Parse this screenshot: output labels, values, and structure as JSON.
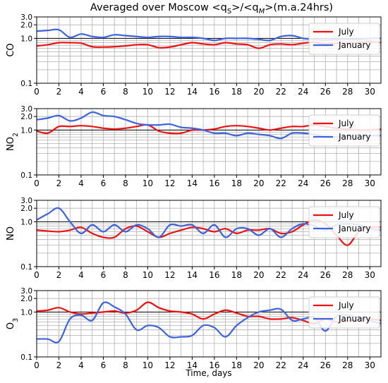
{
  "title_text": "Averaged over Moscow <q",
  "title_sub_s": "S",
  "title_mid": ">/<q",
  "title_sub_m": "M",
  "title_end": ">(m.a.24hrs)",
  "xlabel": "Time, days",
  "colors": {
    "july": "#ee1111",
    "january": "#3d63dd"
  },
  "chart_data": [
    {
      "type": "line",
      "ylabel": "CO",
      "ylabel_sub": "",
      "yscale": "log",
      "ylim": [
        0.1,
        3.0
      ],
      "xlim": [
        0,
        31
      ],
      "yticks": [
        "3.0",
        "2.0",
        "1.0",
        "0.1"
      ],
      "xticks": [
        "0",
        "2",
        "4",
        "6",
        "8",
        "10",
        "12",
        "14",
        "16",
        "18",
        "20",
        "22",
        "24",
        "26",
        "28",
        "30"
      ],
      "legend": "top-right",
      "series": [
        {
          "name": "July",
          "x": [
            0,
            1,
            2,
            3,
            4,
            5,
            6,
            7,
            8,
            9,
            10,
            11,
            12,
            13,
            14,
            15,
            16,
            17,
            18,
            19,
            20,
            21,
            22,
            23,
            24,
            25,
            26,
            27,
            28,
            29,
            30,
            31
          ],
          "values": [
            0.68,
            0.72,
            0.8,
            0.8,
            0.78,
            0.65,
            0.64,
            0.65,
            0.68,
            0.72,
            0.72,
            0.62,
            0.64,
            0.72,
            0.8,
            0.75,
            0.72,
            0.8,
            0.75,
            0.72,
            0.6,
            0.72,
            0.75,
            0.72,
            0.78,
            0.82,
            0.75,
            0.78,
            0.8,
            0.8,
            0.85,
            0.8
          ]
        },
        {
          "name": "January",
          "x": [
            0,
            1,
            2,
            3,
            4,
            5,
            6,
            7,
            8,
            9,
            10,
            11,
            12,
            13,
            14,
            15,
            16,
            17,
            18,
            19,
            20,
            21,
            22,
            23,
            24,
            25,
            26,
            27,
            28,
            29,
            30,
            31
          ],
          "values": [
            1.45,
            1.5,
            1.55,
            1.05,
            1.25,
            1.1,
            1.05,
            1.2,
            1.15,
            1.1,
            1.05,
            1.1,
            1.1,
            1.05,
            1.05,
            1.0,
            0.9,
            1.0,
            1.0,
            1.0,
            0.95,
            0.9,
            1.1,
            1.15,
            1.0,
            0.95,
            0.92,
            0.95,
            0.95,
            0.95,
            1.0,
            1.0
          ]
        }
      ]
    },
    {
      "type": "line",
      "ylabel": "NO",
      "ylabel_sub": "2",
      "yscale": "log",
      "ylim": [
        0.1,
        3.0
      ],
      "xlim": [
        0,
        31
      ],
      "yticks": [
        "3.0",
        "2.0",
        "1.0",
        "0.1"
      ],
      "xticks": [
        "0",
        "2",
        "4",
        "6",
        "8",
        "10",
        "12",
        "14",
        "16",
        "18",
        "20",
        "22",
        "24",
        "26",
        "28",
        "30"
      ],
      "legend": "top-right",
      "series": [
        {
          "name": "July",
          "x": [
            0,
            1,
            2,
            3,
            4,
            5,
            6,
            7,
            8,
            9,
            10,
            11,
            12,
            13,
            14,
            15,
            16,
            17,
            18,
            19,
            20,
            21,
            22,
            23,
            24,
            25,
            26,
            27,
            28,
            29,
            30,
            31
          ],
          "values": [
            0.95,
            0.85,
            1.2,
            1.2,
            1.25,
            1.2,
            1.1,
            1.05,
            1.1,
            1.2,
            1.3,
            0.95,
            0.85,
            0.85,
            1.0,
            1.0,
            1.05,
            1.2,
            1.25,
            1.2,
            1.1,
            1.0,
            1.1,
            1.2,
            1.2,
            1.3,
            1.2,
            1.1,
            1.05,
            1.0,
            1.0,
            1.05
          ]
        },
        {
          "name": "January",
          "x": [
            0,
            1,
            2,
            3,
            4,
            5,
            6,
            7,
            8,
            9,
            10,
            11,
            12,
            13,
            14,
            15,
            16,
            17,
            18,
            19,
            20,
            21,
            22,
            23,
            24,
            25,
            26,
            27,
            28,
            29,
            30,
            31
          ],
          "values": [
            1.7,
            1.85,
            2.1,
            1.6,
            1.85,
            2.5,
            2.1,
            2.0,
            1.7,
            1.4,
            1.3,
            1.3,
            1.35,
            1.15,
            1.1,
            1.0,
            0.85,
            0.85,
            0.75,
            0.85,
            0.8,
            0.75,
            0.65,
            0.85,
            0.85,
            0.8,
            0.7,
            0.7,
            0.75,
            0.7,
            0.75,
            0.75
          ]
        }
      ]
    },
    {
      "type": "line",
      "ylabel": "NO",
      "ylabel_sub": "",
      "yscale": "log",
      "ylim": [
        0.1,
        3.0
      ],
      "xlim": [
        0,
        31
      ],
      "yticks": [
        "3.0",
        "2.0",
        "1.0",
        "0.1"
      ],
      "xticks": [
        "0",
        "2",
        "4",
        "6",
        "8",
        "10",
        "12",
        "14",
        "16",
        "18",
        "20",
        "22",
        "24",
        "26",
        "28",
        "30"
      ],
      "legend": "top-right",
      "series": [
        {
          "name": "July",
          "x": [
            0,
            1,
            2,
            3,
            4,
            5,
            6,
            7,
            8,
            9,
            10,
            11,
            12,
            13,
            14,
            15,
            16,
            17,
            18,
            19,
            20,
            21,
            22,
            23,
            24,
            25,
            26,
            27,
            28,
            29,
            30,
            31
          ],
          "values": [
            0.65,
            0.62,
            0.6,
            0.65,
            0.75,
            0.55,
            0.45,
            0.45,
            0.7,
            0.8,
            0.6,
            0.45,
            0.55,
            0.65,
            0.75,
            0.7,
            0.6,
            0.7,
            0.55,
            0.65,
            0.65,
            0.7,
            0.55,
            0.6,
            0.85,
            1.1,
            0.9,
            0.5,
            0.3,
            0.6,
            0.75,
            0.75
          ]
        },
        {
          "name": "January",
          "x": [
            0,
            1,
            2,
            3,
            4,
            5,
            6,
            7,
            8,
            9,
            10,
            11,
            12,
            13,
            14,
            15,
            16,
            17,
            18,
            19,
            20,
            21,
            22,
            23,
            24,
            25,
            26,
            27,
            28,
            29,
            30,
            31
          ],
          "values": [
            1.1,
            1.5,
            2.0,
            1.0,
            0.55,
            0.85,
            0.6,
            0.85,
            0.6,
            0.85,
            0.7,
            0.45,
            0.85,
            0.8,
            0.85,
            0.55,
            0.85,
            0.45,
            0.7,
            0.7,
            0.5,
            0.7,
            0.45,
            0.7,
            0.9,
            0.8,
            0.65,
            0.85,
            0.9,
            0.85,
            0.7,
            0.65
          ]
        }
      ]
    },
    {
      "type": "line",
      "ylabel": "O",
      "ylabel_sub": "3",
      "yscale": "log",
      "ylim": [
        0.1,
        3.0
      ],
      "xlim": [
        0,
        31
      ],
      "yticks": [
        "3.0",
        "2.0",
        "1.0",
        "0.1"
      ],
      "xticks": [
        "0",
        "2",
        "4",
        "6",
        "8",
        "10",
        "12",
        "14",
        "16",
        "18",
        "20",
        "22",
        "24",
        "26",
        "28",
        "30"
      ],
      "legend": "top-right",
      "series": [
        {
          "name": "July",
          "x": [
            0,
            1,
            2,
            3,
            4,
            5,
            6,
            7,
            8,
            9,
            10,
            11,
            12,
            13,
            14,
            15,
            16,
            17,
            18,
            19,
            20,
            21,
            22,
            23,
            24,
            25,
            26,
            27,
            28,
            29,
            30,
            31
          ],
          "values": [
            1.05,
            1.1,
            1.25,
            1.0,
            0.9,
            0.95,
            1.0,
            1.05,
            0.95,
            1.1,
            1.65,
            1.25,
            1.05,
            1.0,
            0.9,
            0.7,
            0.9,
            1.1,
            0.95,
            0.8,
            0.8,
            0.7,
            0.7,
            0.75,
            0.65,
            0.55,
            0.7,
            0.6,
            0.65,
            0.65,
            0.7,
            0.65
          ]
        },
        {
          "name": "January",
          "x": [
            0,
            1,
            2,
            3,
            4,
            5,
            6,
            7,
            8,
            9,
            10,
            11,
            12,
            13,
            14,
            15,
            16,
            17,
            18,
            19,
            20,
            21,
            22,
            23,
            24,
            25,
            26,
            27,
            28,
            29,
            30,
            31
          ],
          "values": [
            0.25,
            0.25,
            0.22,
            0.7,
            0.85,
            0.65,
            1.6,
            1.3,
            0.9,
            0.4,
            0.5,
            0.45,
            0.28,
            0.28,
            0.3,
            0.5,
            0.45,
            0.28,
            0.5,
            0.75,
            1.0,
            1.1,
            1.15,
            0.65,
            0.7,
            0.75,
            0.38,
            0.8,
            0.85,
            0.75,
            0.65,
            0.55
          ]
        }
      ]
    }
  ]
}
